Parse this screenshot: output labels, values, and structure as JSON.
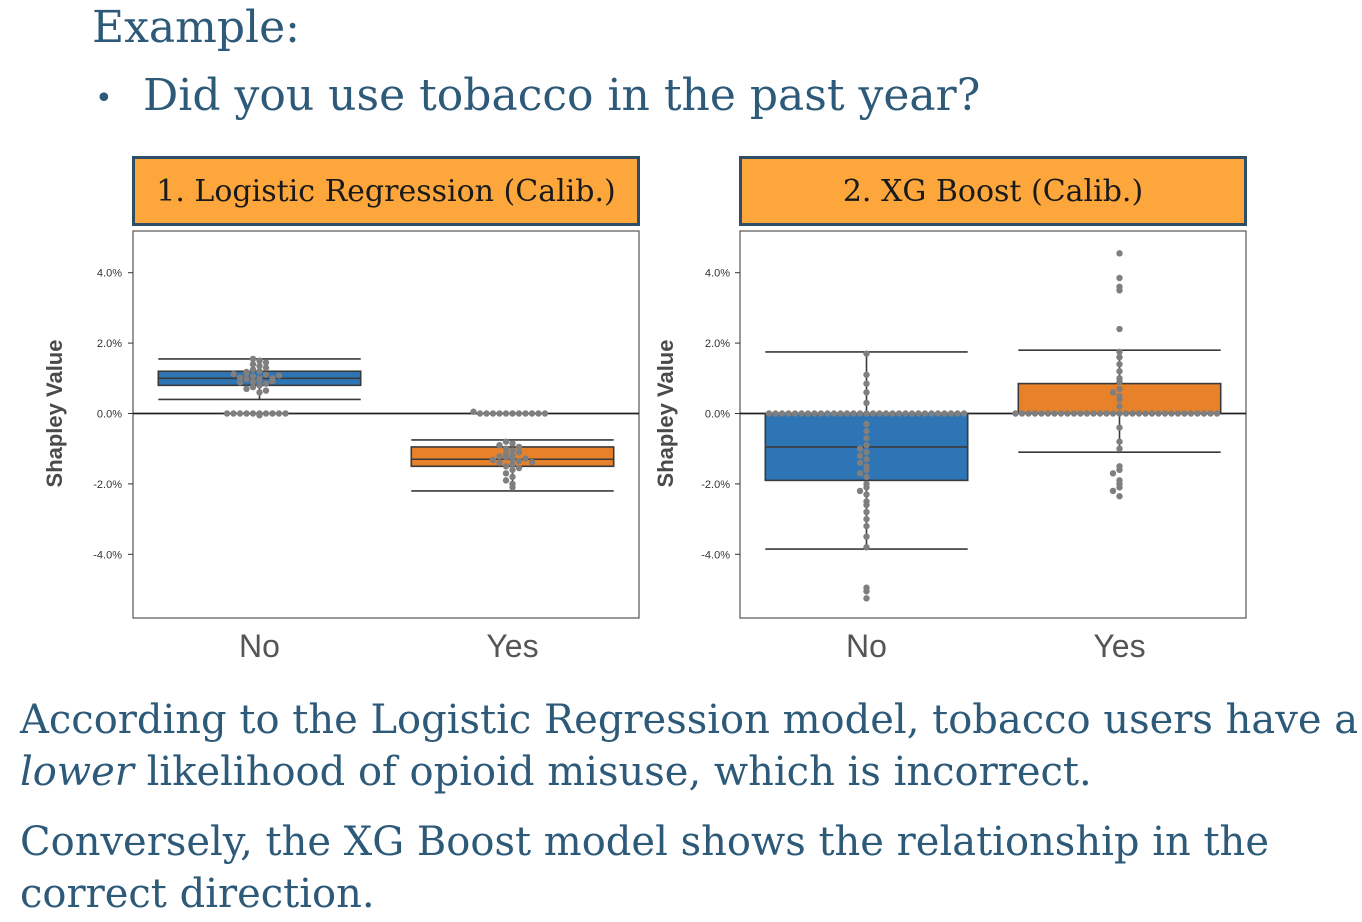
{
  "slide": {
    "heading": "Example:",
    "bullet_symbol": "•",
    "bullet": "Did you use tobacco in the past year?",
    "panel1_title": "1.  Logistic Regression (Calib.)",
    "panel2_title": "2.  XG Boost (Calib.)",
    "caption1_part1": "According to the Logistic Regression model, tobacco users have a ",
    "caption1_em": "lower",
    "caption1_part2": " likelihood of opioid misuse, which is incorrect.",
    "caption2": "Conversely, the XG Boost model shows the relationship in the correct direction."
  },
  "chart_data": [
    {
      "type": "box",
      "title": "1.  Logistic Regression (Calib.)",
      "ylabel": "Shapley Value",
      "xlabel": "",
      "categories": [
        "No",
        "Yes"
      ],
      "yticks": [
        "4.0%",
        "2.0%",
        "0.0%",
        "-2.0%",
        "-4.0%"
      ],
      "ytick_values": [
        4.0,
        2.0,
        0.0,
        -2.0,
        -4.0
      ],
      "ylim": [
        -5.8,
        5.2
      ],
      "reference_line": 0.0,
      "colors": [
        "#2e75b6",
        "#e8822a"
      ],
      "boxes": [
        {
          "category": "No",
          "whisker_low": 0.4,
          "q1": 0.8,
          "median": 1.0,
          "q3": 1.2,
          "whisker_high": 1.55
        },
        {
          "category": "Yes",
          "whisker_low": -2.2,
          "q1": -1.5,
          "median": -1.3,
          "q3": -0.95,
          "whisker_high": -0.75
        }
      ],
      "points": [
        {
          "category": "No",
          "values": [
            1.0,
            1.05,
            0.95,
            1.1,
            0.9,
            1.15,
            0.85,
            1.2,
            1.25,
            0.8,
            1.3,
            1.35,
            0.75,
            1.4,
            1.45,
            1.5,
            1.0,
            1.02,
            0.98,
            1.08,
            0.92,
            1.12,
            0.88,
            1.18,
            0.0,
            0.0,
            0.0,
            0.0,
            0.0,
            0.0,
            0.0,
            0.0,
            0.0,
            0.0,
            -0.05,
            0.6,
            0.65,
            0.7,
            1.55
          ]
        },
        {
          "category": "Yes",
          "values": [
            -1.3,
            -1.25,
            -1.35,
            -1.2,
            -1.4,
            -1.15,
            -1.45,
            -1.1,
            -1.5,
            -1.05,
            -1.55,
            -1.0,
            -1.6,
            -0.95,
            -1.7,
            -0.9,
            -1.8,
            -0.85,
            -1.9,
            -2.0,
            -2.1,
            -1.28,
            -1.32,
            -1.22,
            -1.38,
            -0.8,
            0.0,
            0.0,
            0.0,
            0.0,
            0.0,
            0.0,
            0.0,
            0.0,
            0.0,
            0.0,
            0.0,
            0.05
          ]
        }
      ]
    },
    {
      "type": "box",
      "title": "2.  XG Boost (Calib.)",
      "ylabel": "Shapley Value",
      "xlabel": "",
      "categories": [
        "No",
        "Yes"
      ],
      "yticks": [
        "4.0%",
        "2.0%",
        "0.0%",
        "-2.0%",
        "-4.0%"
      ],
      "ytick_values": [
        4.0,
        2.0,
        0.0,
        -2.0,
        -4.0
      ],
      "ylim": [
        -5.8,
        5.2
      ],
      "reference_line": 0.0,
      "colors": [
        "#2e75b6",
        "#e8822a"
      ],
      "boxes": [
        {
          "category": "No",
          "whisker_low": -3.85,
          "q1": -1.9,
          "median": -0.95,
          "q3": 0.0,
          "whisker_high": 1.75
        },
        {
          "category": "Yes",
          "whisker_low": -1.1,
          "q1": 0.0,
          "median": 0.0,
          "q3": 0.85,
          "whisker_high": 1.8
        }
      ],
      "points": [
        {
          "category": "No",
          "values": [
            0.0,
            0.0,
            0.0,
            0.0,
            0.0,
            0.0,
            0.0,
            0.0,
            0.0,
            0.0,
            0.0,
            0.0,
            0.0,
            0.0,
            0.0,
            0.0,
            0.0,
            0.0,
            0.0,
            0.0,
            0.0,
            0.0,
            0.0,
            0.0,
            0.0,
            0.0,
            0.0,
            0.0,
            0.0,
            0.0,
            0.0,
            -0.3,
            -0.5,
            -0.7,
            -0.9,
            -1.0,
            -1.1,
            -1.2,
            -1.3,
            -1.4,
            -1.5,
            -1.6,
            -1.7,
            -1.8,
            -2.0,
            -2.1,
            -2.2,
            -2.3,
            -2.5,
            -2.6,
            -2.8,
            -3.0,
            -3.2,
            -3.5,
            -3.8,
            0.3,
            0.6,
            0.85,
            1.1,
            1.7,
            -4.95,
            -5.05,
            -5.25
          ]
        },
        {
          "category": "Yes",
          "values": [
            0.0,
            0.0,
            0.0,
            0.0,
            0.0,
            0.0,
            0.0,
            0.0,
            0.0,
            0.0,
            0.0,
            0.0,
            0.0,
            0.0,
            0.0,
            0.0,
            0.0,
            0.0,
            0.0,
            0.0,
            0.0,
            0.0,
            0.0,
            0.0,
            0.0,
            0.0,
            0.0,
            0.0,
            0.0,
            0.0,
            0.0,
            0.0,
            0.2,
            0.4,
            0.5,
            0.6,
            0.7,
            0.9,
            1.0,
            1.2,
            1.4,
            1.6,
            1.75,
            -0.4,
            -0.8,
            -1.0,
            -1.5,
            -1.6,
            -1.7,
            -1.9,
            -2.0,
            -2.1,
            -2.2,
            -2.35,
            2.4,
            3.5,
            3.6,
            3.85,
            4.55
          ]
        }
      ]
    }
  ]
}
